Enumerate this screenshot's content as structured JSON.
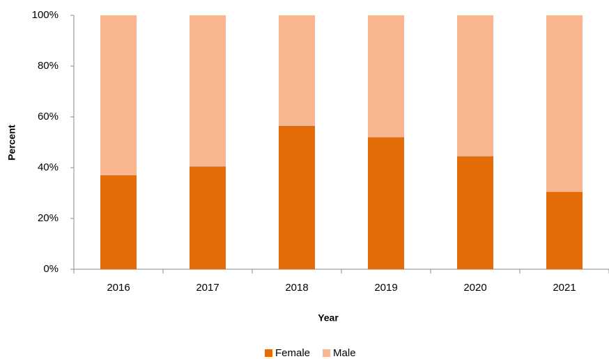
{
  "chart_data": {
    "type": "stacked_bar",
    "x_label": "Year",
    "y_label": "Percent",
    "categories": [
      "2016",
      "2017",
      "2018",
      "2019",
      "2020",
      "2021"
    ],
    "series": [
      {
        "name": "Female",
        "color": "#e36c09",
        "values": [
          37,
          40.5,
          56.5,
          52,
          44.5,
          30.5
        ]
      },
      {
        "name": "Male",
        "color": "#fab78f",
        "values": [
          63,
          59.5,
          43.5,
          48,
          55.5,
          69.5
        ]
      }
    ],
    "ylim": [
      0,
      100
    ],
    "yticks": [
      {
        "value": 0,
        "label": "0%"
      },
      {
        "value": 20,
        "label": "20%"
      },
      {
        "value": 40,
        "label": "40%"
      },
      {
        "value": 60,
        "label": "60%"
      },
      {
        "value": 80,
        "label": "80%"
      },
      {
        "value": 100,
        "label": "100%"
      }
    ],
    "legend": "bottom"
  }
}
